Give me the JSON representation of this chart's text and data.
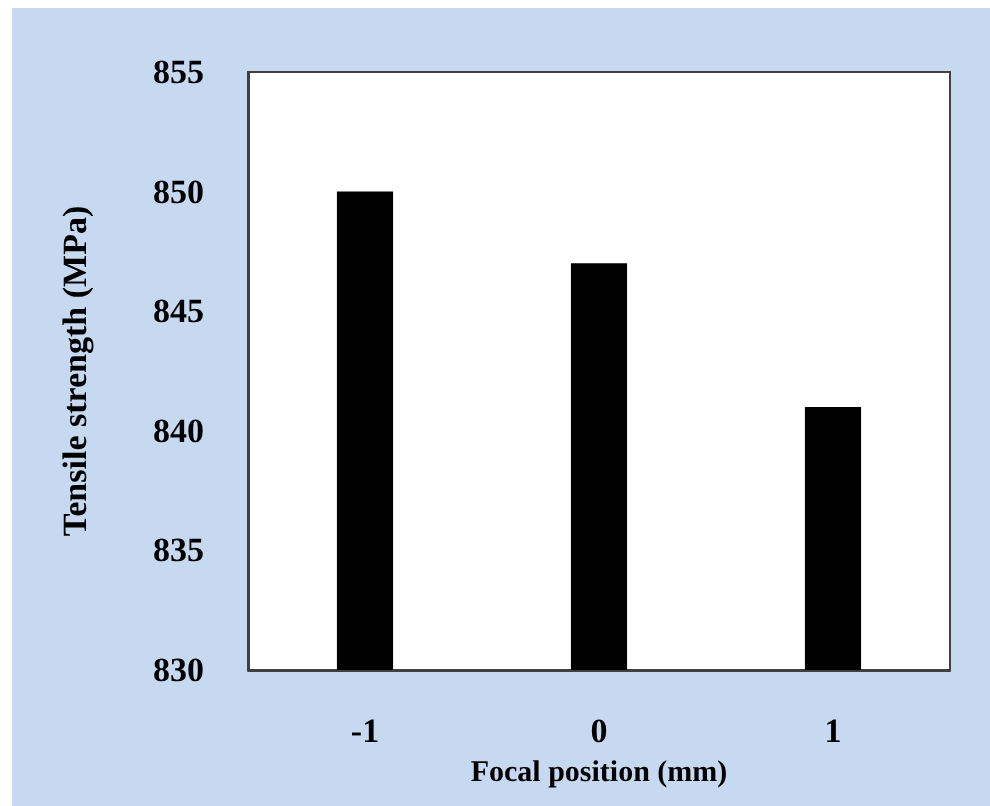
{
  "chart_data": {
    "type": "bar",
    "xlabel": "Focal position (mm)",
    "ylabel": "Tensile strength (MPa)",
    "categories": [
      "-1",
      "0",
      "1"
    ],
    "values": [
      850,
      847,
      841
    ],
    "color": "#000000",
    "ylim": [
      830,
      855
    ],
    "yticks": [
      830,
      835,
      840,
      845,
      850,
      855
    ],
    "grid": false
  }
}
